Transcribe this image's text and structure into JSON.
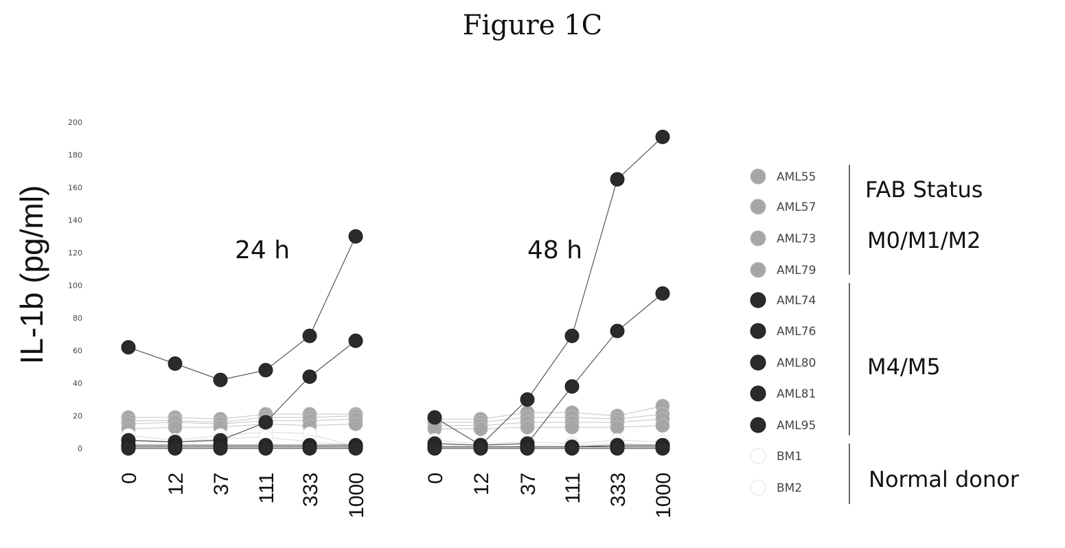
{
  "title": "Figure 1C",
  "colors": {
    "aml_m012": "#a6a6a6",
    "aml_m45": "#2b2b2b",
    "normal": "#ffffff"
  },
  "chart_data": {
    "type": "line",
    "ylabel": "IL-1b (pg/ml)",
    "ylim": [
      0,
      200
    ],
    "yticks": [
      "0",
      "20",
      "40",
      "60",
      "80",
      "100",
      "120",
      "140",
      "160",
      "180",
      "200"
    ],
    "categories": [
      "0",
      "12",
      "37",
      "111",
      "333",
      "1000"
    ],
    "panels": [
      {
        "label": "24 h",
        "series": [
          {
            "name": "AML55",
            "group": "m012",
            "values": [
              19,
              19,
              18,
              21,
              21,
              21
            ]
          },
          {
            "name": "AML57",
            "group": "m012",
            "values": [
              17,
              17,
              16,
              19,
              19,
              20
            ]
          },
          {
            "name": "AML73",
            "group": "m012",
            "values": [
              15,
              16,
              15,
              17,
              17,
              18
            ]
          },
          {
            "name": "AML79",
            "group": "m012",
            "values": [
              12,
              13,
              13,
              15,
              14,
              15
            ]
          },
          {
            "name": "AML74",
            "group": "m45",
            "values": [
              62,
              52,
              42,
              48,
              69,
              130
            ]
          },
          {
            "name": "AML76",
            "group": "m45",
            "values": [
              5,
              4,
              5,
              16,
              44,
              66
            ]
          },
          {
            "name": "AML80",
            "group": "m45",
            "values": [
              2,
              2,
              2,
              2,
              2,
              2
            ]
          },
          {
            "name": "AML81",
            "group": "m45",
            "values": [
              1,
              1,
              1,
              1,
              1,
              1
            ]
          },
          {
            "name": "AML95",
            "group": "m45",
            "values": [
              0,
              0,
              0,
              0,
              0,
              0
            ]
          },
          {
            "name": "BM1",
            "group": "normal",
            "values": [
              8,
              5,
              8,
              10,
              9,
              1
            ]
          },
          {
            "name": "BM2",
            "group": "normal",
            "values": [
              4,
              4,
              6,
              7,
              4,
              2
            ]
          }
        ]
      },
      {
        "label": "48 h",
        "series": [
          {
            "name": "AML55",
            "group": "m012",
            "values": [
              18,
              18,
              22,
              22,
              20,
              26
            ]
          },
          {
            "name": "AML57",
            "group": "m012",
            "values": [
              16,
              16,
              19,
              19,
              18,
              21
            ]
          },
          {
            "name": "AML73",
            "group": "m012",
            "values": [
              14,
              14,
              16,
              16,
              16,
              18
            ]
          },
          {
            "name": "AML79",
            "group": "m012",
            "values": [
              12,
              12,
              13,
              13,
              13,
              14
            ]
          },
          {
            "name": "AML74",
            "group": "m45",
            "values": [
              19,
              2,
              30,
              69,
              165,
              191
            ]
          },
          {
            "name": "AML76",
            "group": "m45",
            "values": [
              3,
              2,
              3,
              38,
              72,
              95
            ]
          },
          {
            "name": "AML80",
            "group": "m45",
            "values": [
              1,
              1,
              1,
              1,
              2,
              2
            ]
          },
          {
            "name": "AML81",
            "group": "m45",
            "values": [
              1,
              1,
              1,
              1,
              1,
              1
            ]
          },
          {
            "name": "AML95",
            "group": "m45",
            "values": [
              0,
              0,
              0,
              0,
              0,
              0
            ]
          },
          {
            "name": "BM1",
            "group": "normal",
            "values": [
              5,
              3,
              4,
              3,
              5,
              4
            ]
          },
          {
            "name": "BM2",
            "group": "normal",
            "values": [
              2,
              2,
              2,
              2,
              3,
              2
            ]
          }
        ]
      }
    ],
    "legend": {
      "position": "right",
      "entries": [
        "AML55",
        "AML57",
        "AML73",
        "AML79",
        "AML74",
        "AML76",
        "AML80",
        "AML81",
        "AML95",
        "BM1",
        "BM2"
      ],
      "groups": [
        {
          "lines": [
            "FAB Status",
            "M0/M1/M2"
          ],
          "members": [
            "AML55",
            "AML57",
            "AML73",
            "AML79"
          ]
        },
        {
          "lines": [
            "M4/M5"
          ],
          "members": [
            "AML74",
            "AML76",
            "AML80",
            "AML81",
            "AML95"
          ]
        },
        {
          "lines": [
            "Normal donor"
          ],
          "members": [
            "BM1",
            "BM2"
          ]
        }
      ]
    }
  }
}
